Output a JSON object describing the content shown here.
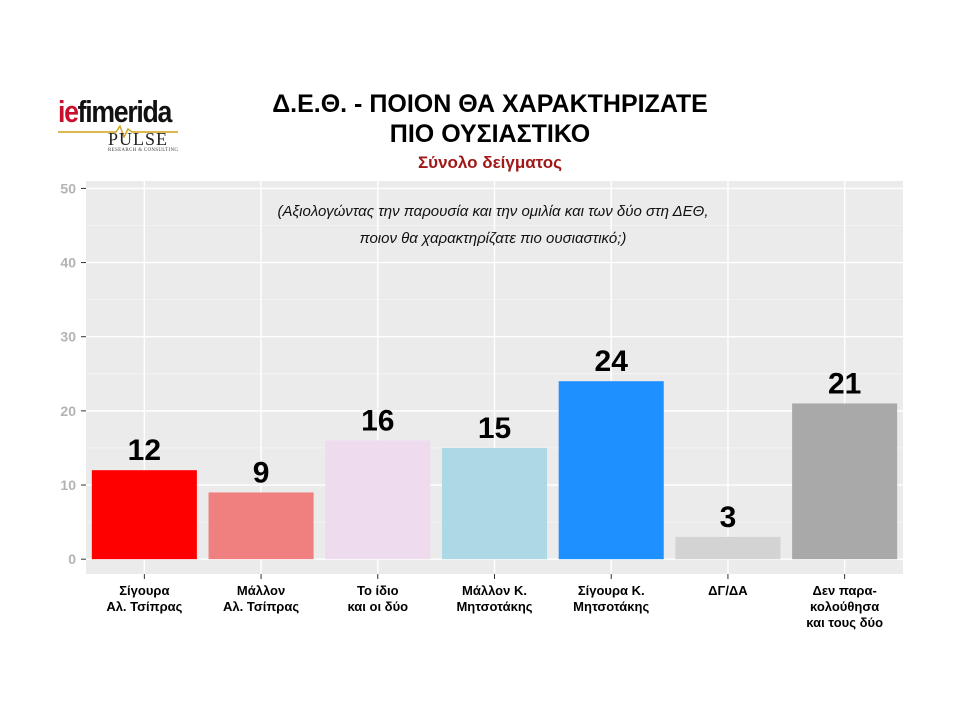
{
  "logo": {
    "brand_prefix": "ie",
    "brand_rest": "fimerida",
    "pulse": "PULSE",
    "pulse_sub": "RESEARCH & CONSULTING"
  },
  "header": {
    "title_line1": "Δ.Ε.Θ. - ΠΟΙΟΝ ΘΑ ΧΑΡΑΚΤΗΡΙΖΑΤΕ",
    "title_line2": "ΠΙΟ ΟΥΣΙΑΣΤΙΚΟ",
    "subtitle": "Σύνολο δείγματος"
  },
  "chart_data": {
    "type": "bar",
    "title": "Δ.Ε.Θ. - ΠΟΙΟΝ ΘΑ ΧΑΡΑΚΤΗΡΙΖΑΤΕ ΠΙΟ ΟΥΣΙΑΣΤΙΚΟ",
    "subtitle": "Σύνολο δείγματος",
    "annotation": [
      "(Αξιολογώντας την παρουσία και την ομιλία και των δύο στη ΔΕΘ,",
      "ποιον θα χαρακτηρίζατε πιο ουσιαστικό;)"
    ],
    "categories": [
      [
        "Σίγουρα",
        "Αλ. Τσίπρας"
      ],
      [
        "Μάλλον",
        "Αλ. Τσίπρας"
      ],
      [
        "Το ίδιο",
        "και οι δύο"
      ],
      [
        "Μάλλον Κ.",
        "Μητσοτάκης"
      ],
      [
        "Σίγουρα Κ.",
        "Μητσοτάκης"
      ],
      [
        "ΔΓ/ΔΑ"
      ],
      [
        "Δεν παρα-",
        "κολούθησα",
        "και τους δύο"
      ]
    ],
    "values": [
      12,
      9,
      16,
      15,
      24,
      3,
      21
    ],
    "value_labels": [
      "12",
      "9",
      "16",
      "15",
      "24",
      "3",
      "21"
    ],
    "colors": [
      "#ff0000",
      "#f08080",
      "#eedbee",
      "#add8e6",
      "#1e90ff",
      "#d3d3d3",
      "#a9a9a9"
    ],
    "yticks": [
      0,
      10,
      20,
      30,
      40,
      50
    ],
    "ylim": [
      -2,
      51
    ],
    "xlabel": "",
    "ylabel": "",
    "grid": true,
    "panel_color": "#ebebeb"
  }
}
